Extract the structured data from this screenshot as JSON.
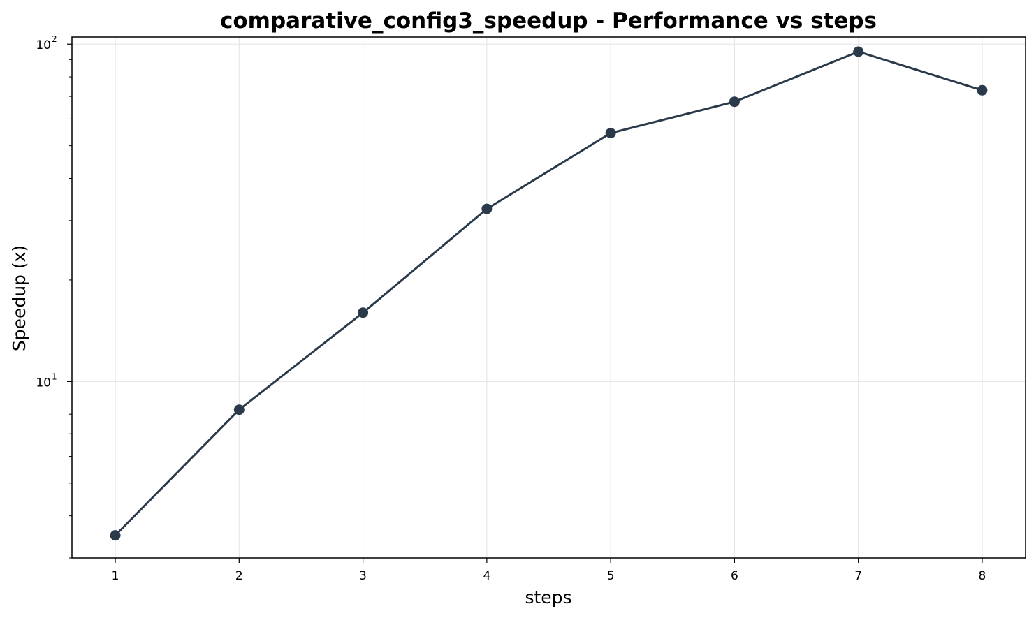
{
  "chart_data": {
    "type": "line",
    "title": "comparative_config3_speedup - Performance vs steps",
    "xlabel": "steps",
    "ylabel": "Speedup (x)",
    "x": [
      1,
      2,
      3,
      4,
      5,
      6,
      7,
      8
    ],
    "xticks": [
      1,
      2,
      3,
      4,
      5,
      6,
      7,
      8
    ],
    "xlim": [
      0.65,
      8.35
    ],
    "yscale": "log",
    "ylim": [
      3.0,
      105
    ],
    "yticks_major": [
      {
        "value": 10,
        "base": "10",
        "exp": "1"
      },
      {
        "value": 100,
        "base": "10",
        "exp": "2"
      }
    ],
    "yticks_minor": [
      3,
      4,
      5,
      6,
      7,
      8,
      9,
      20,
      30,
      40,
      50,
      60,
      70,
      80,
      90
    ],
    "grid": true,
    "series": [
      {
        "values": [
          3.5,
          8.25,
          16.0,
          32.5,
          54.5,
          67.5,
          95.0,
          73.0
        ],
        "color": "#2b3a4b",
        "marker": "circle"
      }
    ]
  }
}
